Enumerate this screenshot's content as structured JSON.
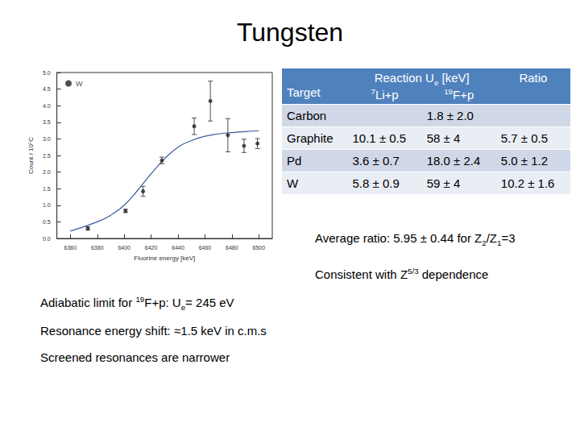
{
  "title": "Tungsten",
  "chart_data": {
    "type": "scatter",
    "x_label": "Fluorine energy [keV]",
    "y_label": "Count / 10⁵C",
    "xlim": [
      6350,
      6510
    ],
    "xticks": [
      6360,
      6380,
      6400,
      6420,
      6440,
      6460,
      6480,
      6500
    ],
    "ylim": [
      0,
      5
    ],
    "yticks": [
      {
        "value": 0,
        "label": "0.0"
      },
      {
        "value": 0.5,
        "label": "0.5"
      },
      {
        "value": 1,
        "label": "1.0"
      },
      {
        "value": 1.5,
        "label": "1.5"
      },
      {
        "value": 2,
        "label": "2.0"
      },
      {
        "value": 2.5,
        "label": "2.5"
      },
      {
        "value": 3,
        "label": "3.0"
      },
      {
        "value": 3.5,
        "label": "3.5"
      },
      {
        "value": 4,
        "label": "4.0"
      },
      {
        "value": 4.5,
        "label": "4.5"
      },
      {
        "value": 5,
        "label": "5.0"
      }
    ],
    "grid": false,
    "legend": "upper left",
    "series": [
      {
        "name": "W",
        "type": "scatter",
        "color": "#222222",
        "marker": "circle",
        "x": [
          6373,
          6401,
          6414,
          6428,
          6452,
          6464,
          6477,
          6489,
          6499
        ],
        "values": [
          0.3,
          0.83,
          1.42,
          2.35,
          3.38,
          4.14,
          3.11,
          2.79,
          2.86
        ],
        "errors": [
          0.05,
          0.05,
          0.15,
          0.1,
          0.25,
          0.6,
          0.5,
          0.2,
          0.15
        ]
      },
      {
        "type": "line",
        "color": "#3a5ba0",
        "line_style": "solid",
        "x": [
          6360,
          6380,
          6390,
          6400,
          6410,
          6420,
          6430,
          6440,
          6450,
          6460,
          6470,
          6480,
          6490,
          6500
        ],
        "values": [
          0.22,
          0.5,
          0.7,
          1.0,
          1.45,
          1.95,
          2.4,
          2.75,
          2.95,
          3.08,
          3.15,
          3.19,
          3.22,
          3.24
        ]
      }
    ]
  },
  "table": {
    "header": {
      "target": "Target",
      "reaction": [
        "Reaction U",
        {
          "sub": "e"
        },
        " [keV]"
      ],
      "columns": [
        [
          {
            "sup": "7"
          },
          "Li+p"
        ],
        [
          {
            "sup": "19"
          },
          "F+p"
        ]
      ],
      "ratio": "Ratio"
    },
    "rows": [
      [
        "Carbon",
        null,
        "1.8 ± 2.0",
        null
      ],
      [
        "Graphite",
        "10.1 ± 0.5",
        "58 ± 4",
        "5.7 ± 0.5"
      ],
      [
        "Pd",
        "3.6 ± 0.7",
        "18.0 ± 2.4",
        "5.0 ± 1.2"
      ],
      [
        "W",
        "5.8 ± 0.9",
        "59 ± 4",
        "10.2 ± 1.6"
      ]
    ]
  },
  "right_notes": [
    [
      "Average ratio: 5.95 ± 0.44 for Z",
      {
        "sub": "2"
      },
      "/Z",
      {
        "sub": "1"
      },
      "=3"
    ],
    [
      "Consistent with Z",
      {
        "sup": "5/3"
      },
      " dependence"
    ]
  ],
  "left_notes": [
    [
      "Adiabatic limit for ",
      {
        "sup": "19"
      },
      "F+p: U",
      {
        "sub": "e"
      },
      "= 245 eV"
    ],
    [
      "Resonance energy shift: ≈1.5 keV in c.m.s"
    ],
    [
      "Screened resonances are narrower"
    ]
  ]
}
